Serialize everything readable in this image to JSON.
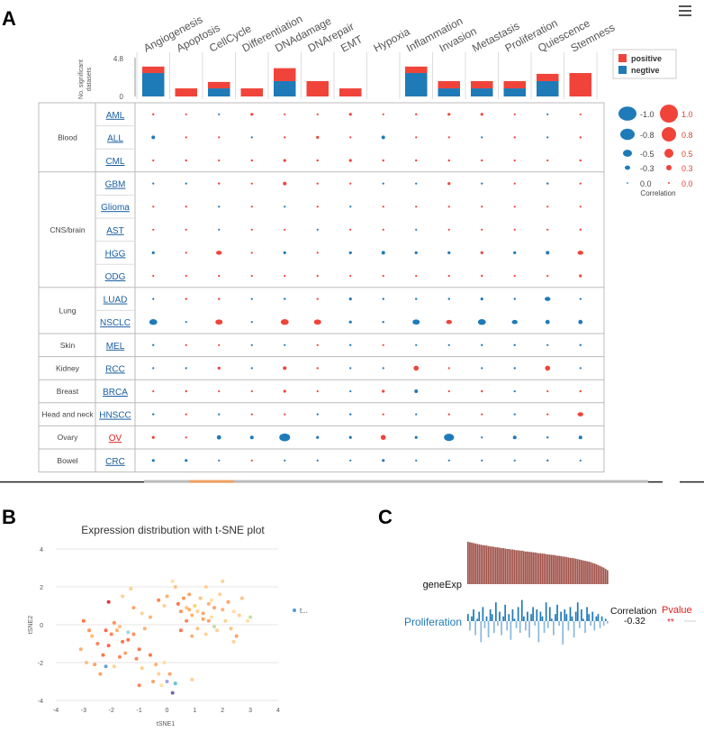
{
  "panels": {
    "a": "A",
    "b": "B",
    "c": "C"
  },
  "chart_data": [
    {
      "type": "bubble-matrix",
      "pathways": [
        "Angiogenesis",
        "Apoptosis",
        "CellCycle",
        "Differentiation",
        "DNAdamage",
        "DNArepair",
        "EMT",
        "Hypoxia",
        "Inflammation",
        "Invasion",
        "Metastasis",
        "Proliferation",
        "Quiescence",
        "Stemness"
      ],
      "bar_axis": {
        "label": "No. significant datasets",
        "ticks": [
          "4.8",
          "0"
        ],
        "ymax": 4.8
      },
      "bar_positive": [
        0.8,
        1.0,
        0.8,
        1.0,
        1.6,
        1.9,
        1.0,
        0,
        0.8,
        0.9,
        0.9,
        0.9,
        0.9,
        2.9
      ],
      "bar_negative": [
        2.9,
        0,
        1.0,
        0,
        1.9,
        0,
        0,
        0,
        2.9,
        1.0,
        1.0,
        1.0,
        1.9,
        0
      ],
      "bar_legend": {
        "positive": "positive",
        "negative": "negtive",
        "positive_color": "#f0443a",
        "negative_color": "#1f7ab8"
      },
      "groups": [
        {
          "name": "Blood",
          "datasets": [
            "AML",
            "ALL",
            "CML"
          ]
        },
        {
          "name": "CNS/brain",
          "datasets": [
            "GBM",
            "Glioma",
            "AST",
            "HGG",
            "ODG"
          ]
        },
        {
          "name": "Lung",
          "datasets": [
            "LUAD",
            "NSCLC"
          ]
        },
        {
          "name": "Skin",
          "datasets": [
            "MEL"
          ]
        },
        {
          "name": "Kidney",
          "datasets": [
            "RCC"
          ]
        },
        {
          "name": "Breast",
          "datasets": [
            "BRCA"
          ]
        },
        {
          "name": "Head and neck",
          "datasets": [
            "HNSCC"
          ]
        },
        {
          "name": "Ovary",
          "datasets": [
            "OV"
          ]
        },
        {
          "name": "Bowel",
          "datasets": [
            "CRC"
          ]
        }
      ],
      "highlight_dataset": "OV",
      "correlations": [
        [
          0.15,
          0.05,
          -0.05,
          0.2,
          0.05,
          0.05,
          0.2,
          0.05,
          0.15,
          0.2,
          0.2,
          0.1,
          -0.1,
          0.1
        ],
        [
          -0.25,
          0.1,
          0.05,
          -0.05,
          0.15,
          0.2,
          0.1,
          -0.25,
          0.05,
          0.1,
          -0.1,
          0.15,
          -0.1,
          0.15
        ],
        [
          0.05,
          0.15,
          0.05,
          0.15,
          0.2,
          0.15,
          0.2,
          0.15,
          0.15,
          0.15,
          0.15,
          0.1,
          0.1,
          0.15
        ],
        [
          -0.1,
          -0.1,
          0.15,
          0.1,
          0.25,
          0.1,
          0.05,
          -0.1,
          -0.1,
          0.2,
          -0.1,
          0.1,
          -0.15,
          0.1
        ],
        [
          0.05,
          0.05,
          -0.05,
          0.05,
          -0.05,
          0.05,
          -0.05,
          0.05,
          0.05,
          0.05,
          0.05,
          0.05,
          0.05,
          0.05
        ],
        [
          0.05,
          0.05,
          -0.05,
          0.05,
          0.05,
          -0.05,
          0.05,
          0.05,
          -0.05,
          0.05,
          0.05,
          0.05,
          0.05,
          0.15
        ],
        [
          -0.2,
          0.1,
          0.4,
          0.1,
          -0.2,
          0.1,
          -0.2,
          -0.25,
          -0.2,
          -0.2,
          0.2,
          -0.2,
          -0.25,
          0.4
        ],
        [
          0.1,
          0.05,
          0.05,
          0.1,
          0.1,
          0.05,
          0.1,
          0.05,
          0.1,
          0.1,
          0.15,
          0.1,
          0.1,
          0.2
        ],
        [
          -0.1,
          0.15,
          0.15,
          -0.1,
          -0.15,
          0.1,
          -0.2,
          -0.15,
          -0.15,
          -0.15,
          -0.2,
          -0.15,
          -0.4,
          -0.1
        ],
        [
          -0.55,
          -0.1,
          0.5,
          -0.1,
          0.55,
          0.5,
          -0.2,
          -0.15,
          -0.5,
          0.4,
          -0.55,
          -0.4,
          -0.3,
          -0.3
        ],
        [
          -0.15,
          0.05,
          0.05,
          -0.05,
          -0.1,
          0.05,
          -0.15,
          0.05,
          -0.1,
          -0.1,
          -0.15,
          -0.15,
          -0.1,
          -0.15
        ],
        [
          -0.05,
          -0.1,
          0.2,
          -0.1,
          0.25,
          0.15,
          -0.1,
          -0.1,
          0.35,
          0.05,
          -0.1,
          -0.15,
          0.35,
          -0.05
        ],
        [
          0.05,
          0.15,
          0.05,
          0.05,
          0.2,
          0.1,
          -0.1,
          0.2,
          -0.25,
          0.1,
          0.15,
          -0.1,
          0.05,
          0.15
        ],
        [
          -0.15,
          0.05,
          -0.05,
          0.05,
          0.05,
          -0.05,
          -0.15,
          0.05,
          -0.05,
          0.05,
          0.05,
          -0.1,
          0.05,
          0.4
        ],
        [
          0.2,
          0.1,
          -0.3,
          -0.25,
          -0.75,
          -0.2,
          -0.2,
          0.35,
          -0.2,
          -0.7,
          -0.1,
          -0.25,
          -0.15,
          -0.25
        ],
        [
          -0.2,
          -0.2,
          -0.1,
          0.05,
          -0.1,
          -0.05,
          -0.1,
          -0.2,
          -0.1,
          -0.1,
          -0.1,
          -0.05,
          -0.15,
          -0.1
        ]
      ],
      "corr_legend": {
        "title": "Correlation",
        "negative_labels": [
          "-1.0",
          "-0.8",
          "-0.5",
          "-0.3",
          "0.0"
        ],
        "positive_labels": [
          "1.0",
          "0.8",
          "0.5",
          "0.3",
          "0.0"
        ],
        "values": [
          1.0,
          0.8,
          0.5,
          0.3,
          0.0
        ]
      }
    },
    {
      "type": "scatter",
      "title": "Expression distribution with t-SNE plot",
      "xlabel": "tSNE1",
      "ylabel": "tSNE2",
      "xlim": [
        -4,
        4
      ],
      "ylim": [
        -4,
        4
      ],
      "xticks": [
        -4,
        -3,
        -2,
        -1,
        0,
        1,
        2,
        3,
        4
      ],
      "yticks": [
        -4,
        -2,
        0,
        2,
        4
      ],
      "legend_label": "t...",
      "legend_color": "#4a9cd8",
      "points": [
        [
          -3.0,
          0.2,
          "#ff6633"
        ],
        [
          -2.8,
          -0.3,
          "#ff8844"
        ],
        [
          -2.7,
          -0.6,
          "#ffb266"
        ],
        [
          -2.5,
          -1.0,
          "#ff7744"
        ],
        [
          -2.3,
          -1.6,
          "#ff6633"
        ],
        [
          -2.6,
          -2.1,
          "#ff9955"
        ],
        [
          -2.9,
          -2.0,
          "#ffbb77"
        ],
        [
          -2.4,
          -2.6,
          "#ff9955"
        ],
        [
          -3.1,
          -1.3,
          "#ffaa66"
        ],
        [
          -2.2,
          -0.3,
          "#ff5533"
        ],
        [
          -2.0,
          -0.5,
          "#ff7744"
        ],
        [
          -1.9,
          0.1,
          "#ff8844"
        ],
        [
          -1.8,
          -0.3,
          "#ffaa55"
        ],
        [
          -1.7,
          -0.1,
          "#ffbb77"
        ],
        [
          -2.1,
          -1.1,
          "#ff5533"
        ],
        [
          -1.7,
          -1.7,
          "#ff7744"
        ],
        [
          -1.6,
          -0.9,
          "#ff6633"
        ],
        [
          -1.5,
          -1.5,
          "#ff9955"
        ],
        [
          -1.9,
          -2.2,
          "#ffcc88"
        ],
        [
          -2.1,
          1.2,
          "#dd2222"
        ],
        [
          -1.6,
          1.5,
          "#ffcc88"
        ],
        [
          -1.3,
          1.9,
          "#ffcc88"
        ],
        [
          -1.2,
          0.9,
          "#ff9955"
        ],
        [
          -1.4,
          -0.8,
          "#ff6633"
        ],
        [
          -1.2,
          -0.5,
          "#ff8844"
        ],
        [
          -1.0,
          -1.3,
          "#ff6633"
        ],
        [
          -0.9,
          0.6,
          "#ffcc88"
        ],
        [
          -0.8,
          -0.2,
          "#ffaa66"
        ],
        [
          -1.1,
          -1.8,
          "#ff7744"
        ],
        [
          -0.9,
          -2.3,
          "#ffcc77"
        ],
        [
          -0.6,
          -1.6,
          "#ff6633"
        ],
        [
          -0.4,
          -2.1,
          "#ffaa66"
        ],
        [
          -0.3,
          -2.6,
          "#ffcc88"
        ],
        [
          -0.5,
          -3.0,
          "#ff9955"
        ],
        [
          -0.2,
          -3.2,
          "#ffdd99"
        ],
        [
          0.0,
          -3.0,
          "#9999dd"
        ],
        [
          0.2,
          -3.6,
          "#6655aa"
        ],
        [
          0.3,
          -3.1,
          "#55bbcc"
        ],
        [
          0.1,
          -2.6,
          "#ff9955"
        ],
        [
          -1.0,
          -3.2,
          "#ff7744"
        ],
        [
          -0.3,
          1.3,
          "#ff7744"
        ],
        [
          -0.1,
          1.0,
          "#ffcc88"
        ],
        [
          0.0,
          1.5,
          "#ffaa66"
        ],
        [
          0.3,
          2.0,
          "#ffbb77"
        ],
        [
          0.4,
          1.1,
          "#ff6633"
        ],
        [
          0.5,
          0.7,
          "#ff8844"
        ],
        [
          0.6,
          1.4,
          "#ff8844"
        ],
        [
          0.7,
          0.9,
          "#ffbb77"
        ],
        [
          0.8,
          1.6,
          "#ff9955"
        ],
        [
          0.9,
          0.5,
          "#ffaa55"
        ],
        [
          1.0,
          1.0,
          "#ffcc66"
        ],
        [
          1.1,
          0.7,
          "#ffcc88"
        ],
        [
          1.2,
          1.4,
          "#ffbb77"
        ],
        [
          1.3,
          0.6,
          "#ff9955"
        ],
        [
          1.4,
          2.0,
          "#ffcc88"
        ],
        [
          1.5,
          1.1,
          "#ffaa66"
        ],
        [
          1.6,
          0.4,
          "#ffdd99"
        ],
        [
          1.7,
          0.9,
          "#ff9955"
        ],
        [
          1.9,
          1.6,
          "#ffcc88"
        ],
        [
          2.0,
          0.8,
          "#ffaa66"
        ],
        [
          2.1,
          0.2,
          "#ffcc88"
        ],
        [
          2.2,
          1.2,
          "#ff9955"
        ],
        [
          2.3,
          -0.2,
          "#ffbb77"
        ],
        [
          2.4,
          0.7,
          "#ffdd99"
        ],
        [
          2.5,
          -0.6,
          "#ff9955"
        ],
        [
          2.6,
          0.5,
          "#ffcc88"
        ],
        [
          2.7,
          1.4,
          "#ffbb77"
        ],
        [
          2.9,
          0.2,
          "#ffdd99"
        ],
        [
          3.0,
          0.4,
          "#bbdd99"
        ],
        [
          2.4,
          -0.9,
          "#ffcc88"
        ],
        [
          0.5,
          -0.3,
          "#ff6633"
        ],
        [
          0.7,
          0.2,
          "#ff7744"
        ],
        [
          0.9,
          -0.6,
          "#ffaa66"
        ],
        [
          1.1,
          -0.2,
          "#ffbb77"
        ],
        [
          1.4,
          -0.5,
          "#ffcc88"
        ],
        [
          1.5,
          0.2,
          "#ff9955"
        ],
        [
          1.7,
          -0.1,
          "#bbdd99"
        ],
        [
          1.8,
          -0.3,
          "#ffcc88"
        ],
        [
          0.8,
          0.8,
          "#ffaa55"
        ],
        [
          1.3,
          0.3,
          "#ff9955"
        ],
        [
          -2.2,
          -2.2,
          "#4a9cd8"
        ],
        [
          -1.4,
          -0.4,
          "#99ccdd"
        ],
        [
          1.6,
          1.3,
          "#ffdd99"
        ],
        [
          0.9,
          -2.9,
          "#ffcc88"
        ],
        [
          -0.1,
          -2.0,
          "#ffdd99"
        ],
        [
          2.0,
          2.3,
          "#ffcc88"
        ],
        [
          0.2,
          2.3,
          "#ffdd99"
        ],
        [
          -0.6,
          0.4,
          "#ffaa66"
        ]
      ]
    },
    {
      "type": "bar",
      "top_label": "geneExp",
      "bottom_label": "Proliferation",
      "corr_label": "Correlation",
      "corr_value": "-0.32",
      "pvalue_label": "Pvalue",
      "pvalue_value": "**",
      "gene_exp_color": "#a0524a",
      "prolif_color": "#1f7ab8",
      "gene_exp": [
        1.0,
        0.99,
        0.98,
        0.97,
        0.96,
        0.95,
        0.94,
        0.93,
        0.92,
        0.92,
        0.91,
        0.9,
        0.89,
        0.89,
        0.88,
        0.87,
        0.87,
        0.86,
        0.85,
        0.85,
        0.84,
        0.83,
        0.83,
        0.82,
        0.82,
        0.81,
        0.8,
        0.8,
        0.79,
        0.79,
        0.78,
        0.77,
        0.77,
        0.76,
        0.76,
        0.75,
        0.75,
        0.74,
        0.73,
        0.73,
        0.72,
        0.72,
        0.71,
        0.7,
        0.7,
        0.69,
        0.69,
        0.68,
        0.67,
        0.67,
        0.66,
        0.65,
        0.65,
        0.64,
        0.63,
        0.62,
        0.62,
        0.61,
        0.6,
        0.59,
        0.58,
        0.57,
        0.56,
        0.55,
        0.54,
        0.53,
        0.52,
        0.5,
        0.49,
        0.47,
        0.45,
        0.43,
        0.41,
        0.39,
        0.36,
        0.33
      ],
      "proliferation": [
        0.3,
        -0.4,
        0.2,
        0.5,
        -0.6,
        0.1,
        0.4,
        -0.9,
        0.6,
        -0.3,
        0.2,
        -0.7,
        0.5,
        0.3,
        -0.5,
        0.8,
        -0.2,
        0.4,
        -0.6,
        0.2,
        0.7,
        -0.4,
        0.3,
        -0.8,
        0.5,
        0.1,
        -0.3,
        0.6,
        -0.5,
        0.9,
        0.2,
        -0.4,
        0.4,
        -0.7,
        0.3,
        0.6,
        -0.2,
        0.5,
        -0.9,
        0.4,
        0.2,
        -0.5,
        0.8,
        -0.3,
        0.6,
        0.1,
        -0.6,
        0.3,
        0.7,
        -0.2,
        0.4,
        -1.0,
        0.5,
        0.3,
        -0.4,
        0.6,
        0.2,
        -0.7,
        0.4,
        0.8,
        -0.3,
        0.5,
        0.1,
        -0.5,
        0.6,
        0.3,
        -0.2,
        0.4,
        -0.4,
        0.2,
        0.3,
        -0.3,
        0.2,
        -0.2,
        0.1,
        -0.1
      ]
    }
  ]
}
